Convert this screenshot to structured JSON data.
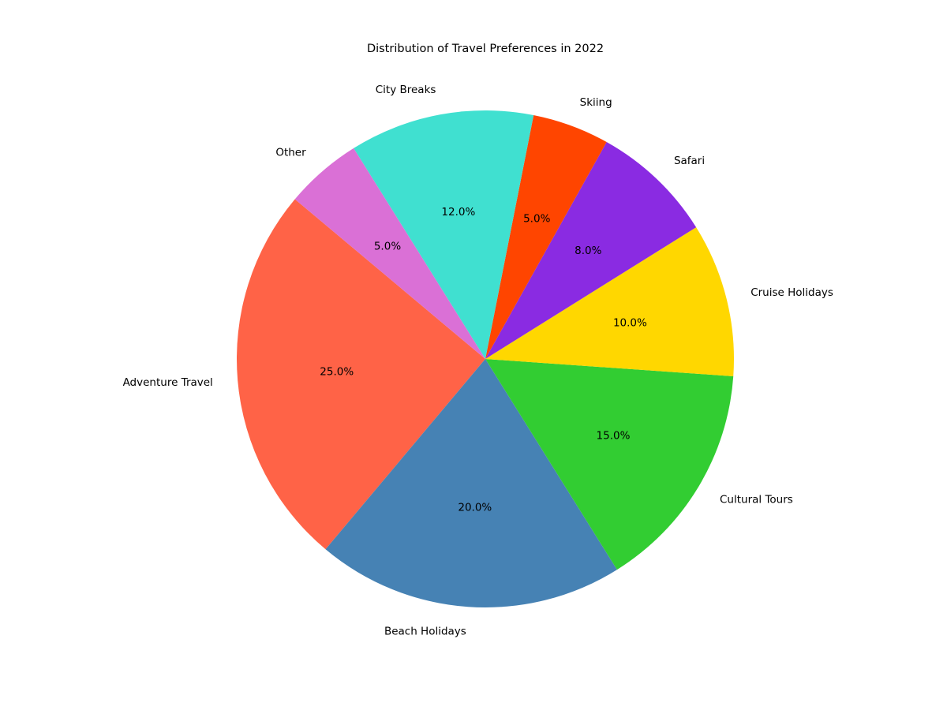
{
  "chart_data": {
    "type": "pie",
    "title": "Distribution of Travel Preferences in 2022",
    "slices": [
      {
        "label": "Adventure Travel",
        "value": 25.0,
        "pct_label": "25.0%",
        "color": "#FF6347"
      },
      {
        "label": "Beach Holidays",
        "value": 20.0,
        "pct_label": "20.0%",
        "color": "#4682B4"
      },
      {
        "label": "Cultural Tours",
        "value": 15.0,
        "pct_label": "15.0%",
        "color": "#32CD32"
      },
      {
        "label": "Cruise Holidays",
        "value": 10.0,
        "pct_label": "10.0%",
        "color": "#FFD700"
      },
      {
        "label": "Safari",
        "value": 8.0,
        "pct_label": "8.0%",
        "color": "#8A2BE2"
      },
      {
        "label": "Skiing",
        "value": 5.0,
        "pct_label": "5.0%",
        "color": "#FF4500"
      },
      {
        "label": "City Breaks",
        "value": 12.0,
        "pct_label": "12.0%",
        "color": "#40E0D0"
      },
      {
        "label": "Other",
        "value": 5.0,
        "pct_label": "5.0%",
        "color": "#DA70D6"
      }
    ],
    "start_angle_deg": 140,
    "direction": "counterclockwise",
    "legend": "none"
  }
}
